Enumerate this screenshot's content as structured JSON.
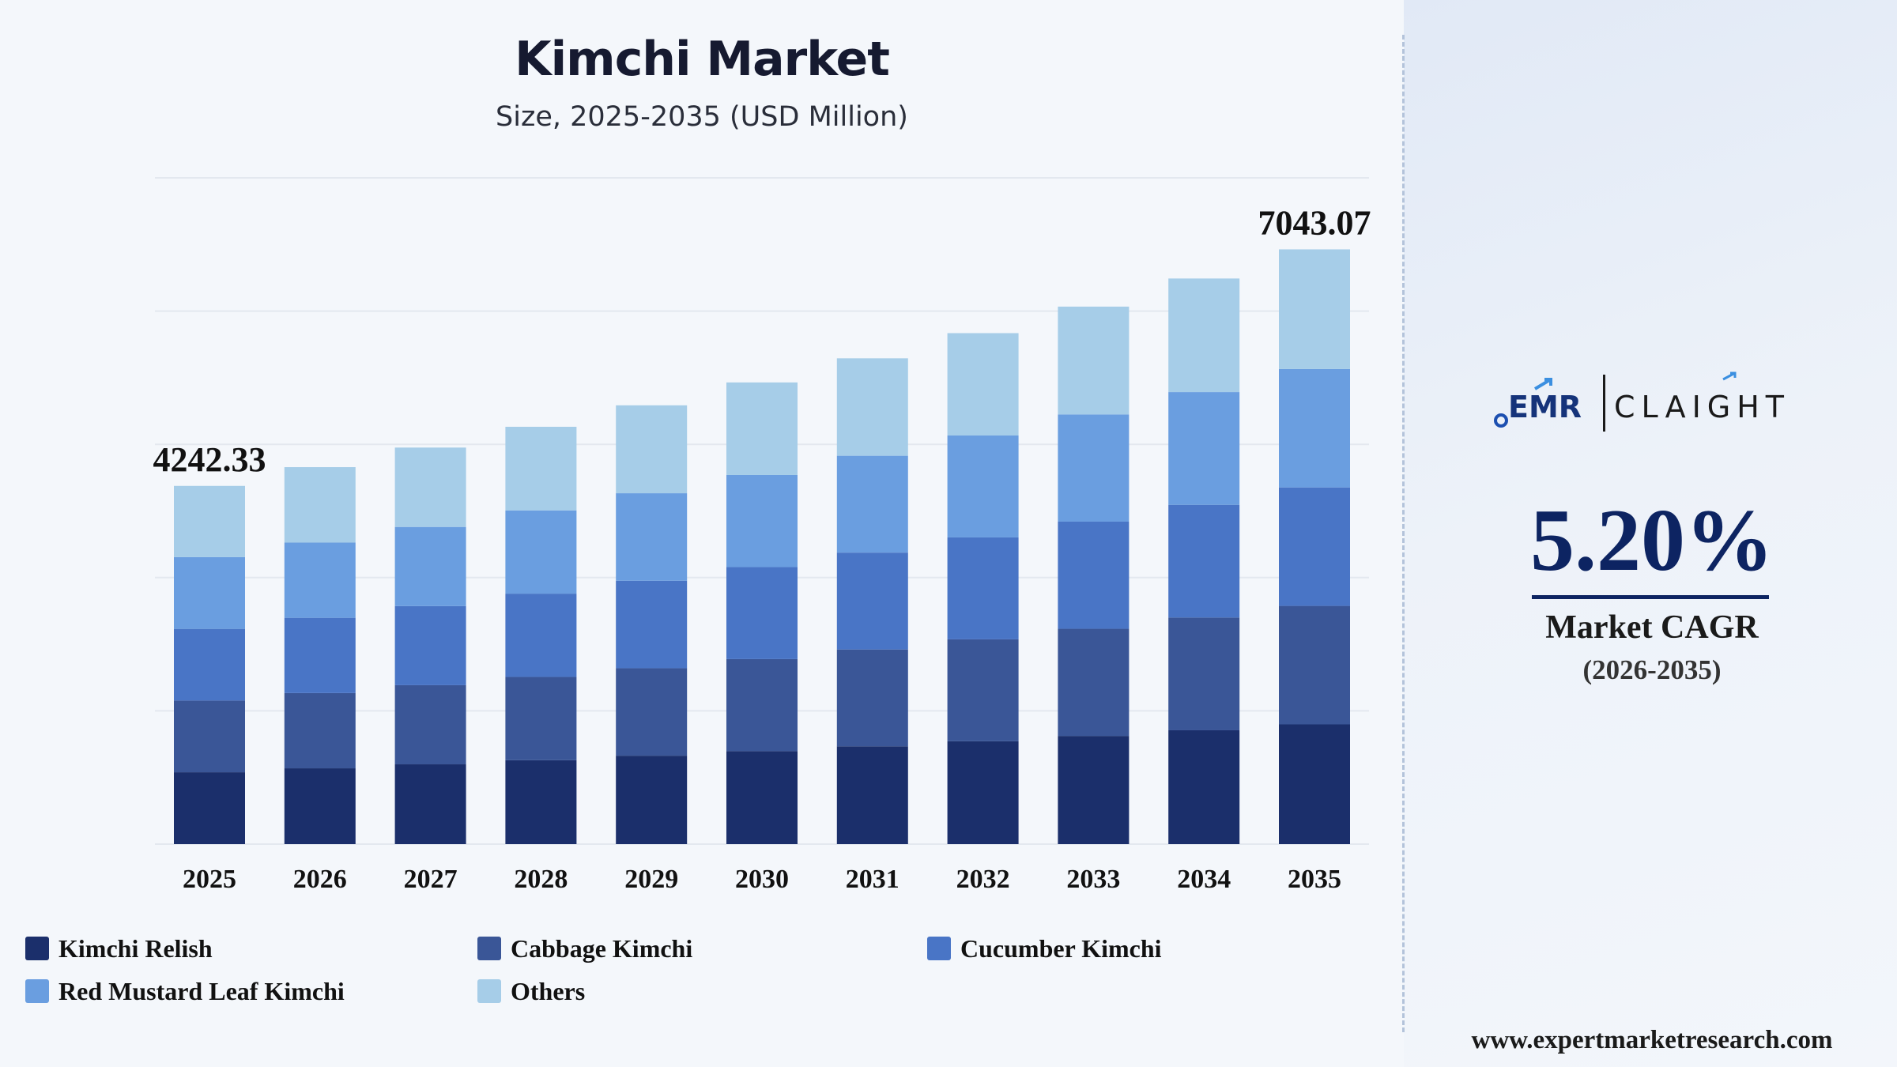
{
  "chart_data": {
    "type": "bar",
    "stacked": true,
    "title": "Kimchi Market",
    "subtitle": "Size, 2025-2035 (USD Million)",
    "categories": [
      "2025",
      "2026",
      "2027",
      "2028",
      "2029",
      "2030",
      "2031",
      "2032",
      "2033",
      "2034",
      "2035"
    ],
    "series": [
      {
        "name": "Kimchi Relish",
        "color": "#1b2f6b",
        "values": [
          851,
          898,
          945,
          994,
          1047,
          1101,
          1158,
          1218,
          1281,
          1348,
          1418
        ]
      },
      {
        "name": "Cabbage Kimchi",
        "color": "#3a5697",
        "values": [
          849,
          891,
          937,
          986,
          1036,
          1090,
          1147,
          1207,
          1269,
          1335,
          1403
        ]
      },
      {
        "name": "Cucumber Kimchi",
        "color": "#4975c6",
        "values": [
          849,
          891,
          937,
          986,
          1036,
          1090,
          1147,
          1207,
          1269,
          1335,
          1403
        ]
      },
      {
        "name": "Red Mustard Leaf Kimchi",
        "color": "#6a9ee0",
        "values": [
          849,
          891,
          937,
          986,
          1036,
          1090,
          1147,
          1207,
          1269,
          1335,
          1403
        ]
      },
      {
        "name": "Others",
        "color": "#a6cde8",
        "values": [
          844,
          893,
          940,
          990,
          1041,
          1096,
          1154,
          1212,
          1277,
          1345,
          1416
        ]
      }
    ],
    "data_labels": [
      {
        "category": "2025",
        "text": "4242.33"
      },
      {
        "category": "2035",
        "text": "7043.07"
      }
    ],
    "ylim": [
      0,
      7890
    ],
    "grid": true,
    "legend": "bottom"
  },
  "legend_items": [
    {
      "label": "Kimchi Relish",
      "color": "#1b2f6b"
    },
    {
      "label": "Cabbage Kimchi",
      "color": "#3a5697"
    },
    {
      "label": "Cucumber Kimchi",
      "color": "#4975c6"
    },
    {
      "label": "Red Mustard Leaf Kimchi",
      "color": "#6a9ee0"
    },
    {
      "label": "Others",
      "color": "#a6cde8"
    }
  ],
  "side_panel": {
    "logo_left": "EMR",
    "logo_right": "CLAIGHT",
    "cagr_value": "5.20%",
    "cagr_label": "Market CAGR",
    "cagr_period": "(2026-2035)",
    "website": "www.expertmarketresearch.com"
  }
}
